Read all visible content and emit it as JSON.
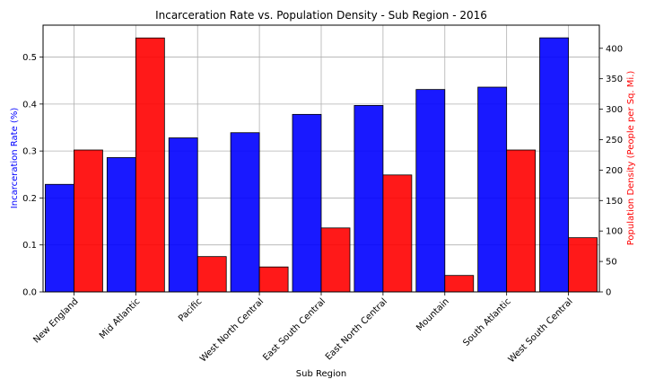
{
  "chart_data": {
    "type": "bar",
    "title": "Incarceration Rate vs. Population Density - Sub Region - 2016",
    "xlabel": "Sub Region",
    "categories": [
      "New England",
      "Mid Atlantic",
      "Pacific",
      "West North Central",
      "East South Central",
      "East North Central",
      "Mountain",
      "South Atlantic",
      "West South Central"
    ],
    "series": [
      {
        "axis": "left",
        "color": "#0000ff",
        "values": [
          0.229,
          0.286,
          0.328,
          0.339,
          0.378,
          0.397,
          0.431,
          0.436,
          0.541
        ]
      },
      {
        "axis": "right",
        "color": "#ff0000",
        "values": [
          233,
          417,
          58,
          41,
          105,
          192,
          27,
          233,
          89
        ]
      }
    ],
    "y_left": {
      "label": "Incarceration Rate (%)",
      "label_color": "#0000ff",
      "lim": [
        0,
        0.568
      ],
      "ticks": [
        "0.0",
        "0.1",
        "0.2",
        "0.3",
        "0.4",
        "0.5"
      ]
    },
    "y_right": {
      "label": "Population Density (People per Sq. Mi.)",
      "label_color": "#ff0000",
      "lim": [
        0,
        438
      ],
      "ticks": [
        "0",
        "50",
        "100",
        "150",
        "200",
        "250",
        "300",
        "350",
        "400"
      ]
    },
    "grid": true
  }
}
